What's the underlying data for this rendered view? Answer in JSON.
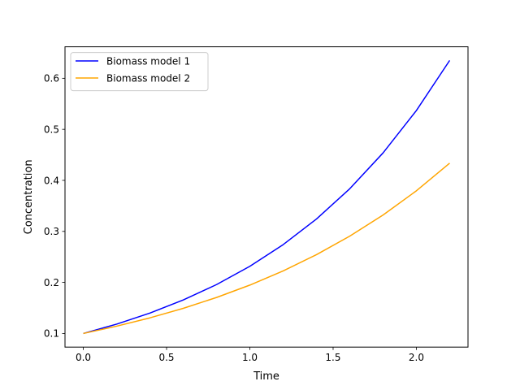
{
  "chart_data": {
    "type": "line",
    "title": "",
    "xlabel": "Time",
    "ylabel": "Concentration",
    "xlim": [
      -0.11,
      2.31
    ],
    "ylim": [
      0.0733,
      0.6617
    ],
    "xticks": [
      0.0,
      0.5,
      1.0,
      1.5,
      2.0
    ],
    "xtick_labels": [
      "0.0",
      "0.5",
      "1.0",
      "1.5",
      "2.0"
    ],
    "yticks": [
      0.1,
      0.2,
      0.3,
      0.4,
      0.5,
      0.6
    ],
    "ytick_labels": [
      "0.1",
      "0.2",
      "0.3",
      "0.4",
      "0.5",
      "0.6"
    ],
    "grid": false,
    "legend_position": "upper-left",
    "series": [
      {
        "name": "Biomass model 1",
        "color": "#0000ff",
        "x": [
          0.0,
          0.2,
          0.4,
          0.6,
          0.8,
          1.0,
          1.2,
          1.4,
          1.6,
          1.8,
          2.0,
          2.2
        ],
        "y": [
          0.1,
          0.1183,
          0.14,
          0.1656,
          0.1958,
          0.2316,
          0.2741,
          0.3243,
          0.3836,
          0.4538,
          0.5368,
          0.635
        ]
      },
      {
        "name": "Biomass model 2",
        "color": "#ffa500",
        "x": [
          0.0,
          0.2,
          0.4,
          0.6,
          0.8,
          1.0,
          1.2,
          1.4,
          1.6,
          1.8,
          2.0,
          2.2
        ],
        "y": [
          0.1,
          0.1143,
          0.1306,
          0.1492,
          0.1705,
          0.1948,
          0.2226,
          0.2544,
          0.2907,
          0.3321,
          0.3795,
          0.4337
        ]
      }
    ]
  }
}
